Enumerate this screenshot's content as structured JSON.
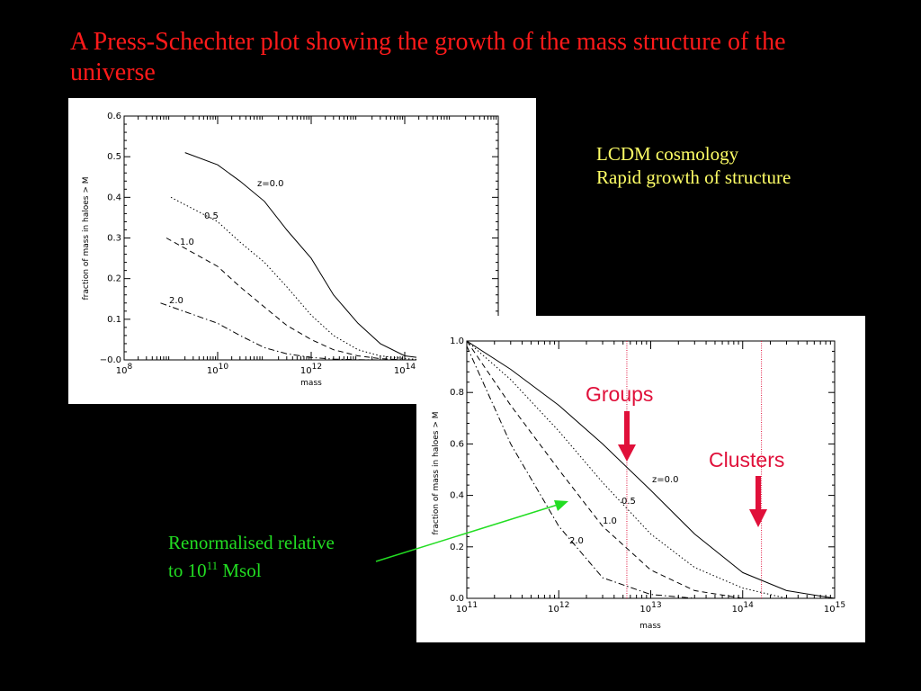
{
  "slide": {
    "title": "A Press-Schechter plot showing the growth of the mass structure of the universe",
    "notes": [
      "LCDM cosmology",
      "Rapid growth of structure"
    ],
    "groups_label": "Groups",
    "clusters_label": "Clusters",
    "renorm_line1": "Renormalised relative",
    "renorm_line2_prefix": "to 10",
    "renorm_exp": "11",
    "renorm_line2_suffix": " Msol",
    "colors": {
      "title": "#ff1a1a",
      "note": "#ffff66",
      "callout": "#e0103a",
      "annotation": "#22dd22"
    }
  },
  "chart_data": [
    {
      "type": "line",
      "xlabel": "mass",
      "ylabel": "fraction of mass in haloes > M",
      "x_scale": "log",
      "xlim": [
        100000000.0,
        1e+16
      ],
      "ylim": [
        0,
        0.6
      ],
      "x_ticks": [
        {
          "base": "10",
          "exp": "8"
        },
        {
          "base": "10",
          "exp": "10"
        },
        {
          "base": "10",
          "exp": "12"
        },
        {
          "base": "10",
          "exp": "14"
        },
        {
          "base": "1",
          "exp": ""
        }
      ],
      "y_ticks": [
        "0.6",
        "0.5",
        "0.4",
        "0.3",
        "0.2",
        "0.1",
        "−0.0"
      ],
      "series": [
        {
          "name": "z=0.0",
          "style": "solid",
          "x": [
            2000000000.0,
            10000000000.0,
            30000000000.0,
            100000000000.0,
            300000000000.0,
            1000000000000.0,
            3000000000000.0,
            10000000000000.0,
            30000000000000.0,
            100000000000000.0,
            300000000000000.0,
            1000000000000000.0
          ],
          "y": [
            0.51,
            0.48,
            0.44,
            0.39,
            0.32,
            0.25,
            0.16,
            0.09,
            0.04,
            0.01,
            0.003,
            0.0
          ]
        },
        {
          "name": "0.5",
          "style": "dotted",
          "x": [
            1000000000.0,
            10000000000.0,
            30000000000.0,
            100000000000.0,
            300000000000.0,
            1000000000000.0,
            3000000000000.0,
            10000000000000.0,
            30000000000000.0,
            100000000000000.0,
            300000000000000.0
          ],
          "y": [
            0.4,
            0.34,
            0.29,
            0.24,
            0.18,
            0.11,
            0.06,
            0.025,
            0.01,
            0.003,
            0.0
          ]
        },
        {
          "name": "1.0",
          "style": "dashed",
          "x": [
            800000000.0,
            10000000000.0,
            30000000000.0,
            100000000000.0,
            300000000000.0,
            1000000000000.0,
            3000000000000.0,
            10000000000000.0,
            30000000000000.0,
            100000000000000.0
          ],
          "y": [
            0.3,
            0.23,
            0.18,
            0.13,
            0.085,
            0.05,
            0.025,
            0.01,
            0.003,
            0.0
          ]
        },
        {
          "name": "2.0",
          "style": "dashdot",
          "x": [
            600000000.0,
            10000000000.0,
            30000000000.0,
            100000000000.0,
            300000000000.0,
            1000000000000.0,
            3000000000000.0,
            10000000000000.0,
            30000000000000.0
          ],
          "y": [
            0.14,
            0.09,
            0.06,
            0.03,
            0.015,
            0.006,
            0.002,
            0.0005,
            0.0
          ]
        }
      ]
    },
    {
      "type": "line",
      "xlabel": "mass",
      "ylabel": "fraction of mass in haloes > M",
      "x_scale": "log",
      "xlim": [
        100000000000.0,
        1000000000000000.0
      ],
      "ylim": [
        0,
        1.0
      ],
      "x_ticks": [
        {
          "base": "10",
          "exp": "11"
        },
        {
          "base": "10",
          "exp": "12"
        },
        {
          "base": "10",
          "exp": "13"
        },
        {
          "base": "10",
          "exp": "14"
        },
        {
          "base": "10",
          "exp": "15"
        }
      ],
      "y_ticks": [
        "1.0",
        "0.8",
        "0.6",
        "0.4",
        "0.2",
        "0.0"
      ],
      "markers": [
        5500000000000.0,
        160000000000000.0
      ],
      "series": [
        {
          "name": "z=0.0",
          "style": "solid",
          "x": [
            100000000000.0,
            300000000000.0,
            1000000000000.0,
            3000000000000.0,
            10000000000000.0,
            30000000000000.0,
            100000000000000.0,
            300000000000000.0,
            1000000000000000.0
          ],
          "y": [
            1.0,
            0.89,
            0.75,
            0.6,
            0.42,
            0.25,
            0.1,
            0.03,
            0.0
          ]
        },
        {
          "name": "0.5",
          "style": "dotted",
          "x": [
            100000000000.0,
            300000000000.0,
            1000000000000.0,
            3000000000000.0,
            10000000000000.0,
            30000000000000.0,
            100000000000000.0,
            300000000000000.0
          ],
          "y": [
            1.0,
            0.85,
            0.65,
            0.45,
            0.25,
            0.12,
            0.04,
            0.0
          ]
        },
        {
          "name": "1.0",
          "style": "dashed",
          "x": [
            100000000000.0,
            300000000000.0,
            1000000000000.0,
            3000000000000.0,
            10000000000000.0,
            30000000000000.0,
            100000000000000.0
          ],
          "y": [
            1.0,
            0.75,
            0.5,
            0.28,
            0.11,
            0.03,
            0.0
          ]
        },
        {
          "name": "2.0",
          "style": "dashdot",
          "x": [
            100000000000.0,
            300000000000.0,
            1000000000000.0,
            3000000000000.0,
            10000000000000.0,
            30000000000000.0
          ],
          "y": [
            0.98,
            0.6,
            0.28,
            0.08,
            0.015,
            0.0
          ]
        }
      ]
    }
  ]
}
